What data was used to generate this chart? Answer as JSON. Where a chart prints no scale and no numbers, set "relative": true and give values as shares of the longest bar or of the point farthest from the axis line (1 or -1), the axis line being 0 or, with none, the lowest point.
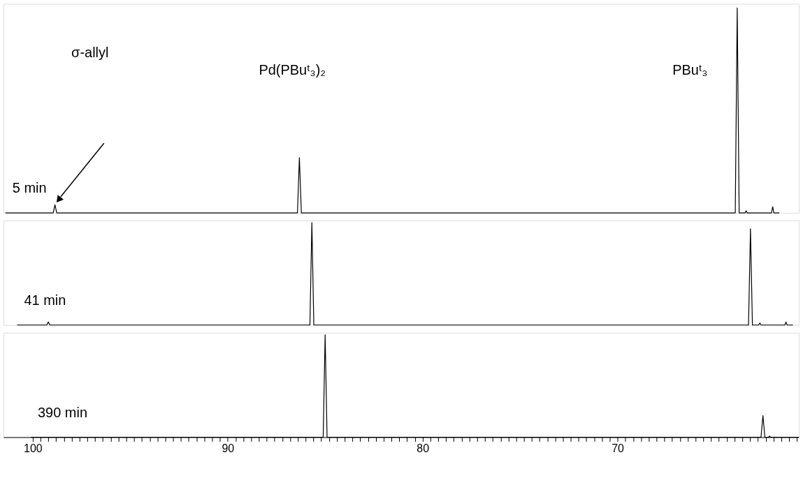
{
  "chart_data": [
    {
      "type": "line",
      "relative": true,
      "xlim": [
        101.5,
        60.7
      ],
      "tick_labels": false,
      "marker": "none",
      "line_style": "solid",
      "series": [
        {
          "name": "5 min",
          "color": "#000000",
          "x": [
            101.4,
            98.95,
            98.86,
            98.77,
            86.42,
            86.32,
            86.22,
            63.96,
            63.86,
            63.76,
            63.45,
            63.4,
            63.35,
            62.1,
            62.04,
            61.98,
            61.7
          ],
          "values": [
            0,
            0,
            0.04,
            0,
            0,
            0.27,
            0,
            0,
            1,
            0,
            0,
            0.01,
            0,
            0,
            0.03,
            0,
            0
          ]
        }
      ],
      "annotations": [
        "σ-allyl",
        "Pd(PBuᵗ₃)₂",
        "PBuᵗ₃"
      ]
    },
    {
      "type": "line",
      "relative": true,
      "xlim": [
        101.5,
        60.7
      ],
      "tick_labels": false,
      "marker": "none",
      "line_style": "solid",
      "series": [
        {
          "name": "41 min",
          "color": "#000000",
          "x": [
            100.8,
            99.28,
            99.2,
            99.12,
            85.78,
            85.68,
            85.58,
            63.28,
            63.18,
            63.08,
            62.76,
            62.7,
            62.64,
            61.42,
            61.36,
            61.3,
            61.0
          ],
          "values": [
            0,
            0,
            0.03,
            0,
            0,
            1,
            0,
            0,
            0.94,
            0,
            0,
            0.02,
            0,
            0,
            0.03,
            0,
            0
          ]
        }
      ]
    },
    {
      "type": "line",
      "relative": true,
      "xlim": [
        101.5,
        60.7
      ],
      "tick_labels": "x",
      "marker": "none",
      "line_style": "solid",
      "xticks": [
        100,
        {
          "value": 99.6,
          "label": null
        },
        {
          "value": 99.2,
          "label": null
        },
        {
          "value": 98.8,
          "label": null
        },
        {
          "value": 98.4,
          "label": null
        },
        {
          "value": 98,
          "label": null
        },
        {
          "value": 97.6,
          "label": null
        },
        {
          "value": 97.2,
          "label": null
        },
        {
          "value": 96.8,
          "label": null
        },
        {
          "value": 96.4,
          "label": null
        },
        {
          "value": 96,
          "label": null
        },
        {
          "value": 95.6,
          "label": null
        },
        {
          "value": 95.2,
          "label": null
        },
        {
          "value": 94.8,
          "label": null
        },
        {
          "value": 94.4,
          "label": null
        },
        {
          "value": 94,
          "label": null
        },
        {
          "value": 93.6,
          "label": null
        },
        {
          "value": 93.2,
          "label": null
        },
        {
          "value": 92.8,
          "label": null
        },
        {
          "value": 92.4,
          "label": null
        },
        {
          "value": 92,
          "label": null
        },
        {
          "value": 91.6,
          "label": null
        },
        {
          "value": 91.2,
          "label": null
        },
        {
          "value": 90.8,
          "label": null
        },
        {
          "value": 90.4,
          "label": null
        },
        90,
        {
          "value": 89.6,
          "label": null
        },
        {
          "value": 89.2,
          "label": null
        },
        {
          "value": 88.8,
          "label": null
        },
        {
          "value": 88.4,
          "label": null
        },
        {
          "value": 88,
          "label": null
        },
        {
          "value": 87.6,
          "label": null
        },
        {
          "value": 87.2,
          "label": null
        },
        {
          "value": 86.8,
          "label": null
        },
        {
          "value": 86.4,
          "label": null
        },
        {
          "value": 86,
          "label": null
        },
        {
          "value": 85.6,
          "label": null
        },
        {
          "value": 85.2,
          "label": null
        },
        {
          "value": 84.8,
          "label": null
        },
        {
          "value": 84.4,
          "label": null
        },
        {
          "value": 84,
          "label": null
        },
        {
          "value": 83.6,
          "label": null
        },
        {
          "value": 83.2,
          "label": null
        },
        {
          "value": 82.8,
          "label": null
        },
        {
          "value": 82.4,
          "label": null
        },
        {
          "value": 82,
          "label": null
        },
        {
          "value": 81.6,
          "label": null
        },
        {
          "value": 81.2,
          "label": null
        },
        {
          "value": 80.8,
          "label": null
        },
        {
          "value": 80.4,
          "label": null
        },
        80,
        {
          "value": 79.6,
          "label": null
        },
        {
          "value": 79.2,
          "label": null
        },
        {
          "value": 78.8,
          "label": null
        },
        {
          "value": 78.4,
          "label": null
        },
        {
          "value": 78,
          "label": null
        },
        {
          "value": 77.6,
          "label": null
        },
        {
          "value": 77.2,
          "label": null
        },
        {
          "value": 76.8,
          "label": null
        },
        {
          "value": 76.4,
          "label": null
        },
        {
          "value": 76,
          "label": null
        },
        {
          "value": 75.6,
          "label": null
        },
        {
          "value": 75.2,
          "label": null
        },
        {
          "value": 74.8,
          "label": null
        },
        {
          "value": 74.4,
          "label": null
        },
        {
          "value": 74,
          "label": null
        },
        {
          "value": 73.6,
          "label": null
        },
        {
          "value": 73.2,
          "label": null
        },
        {
          "value": 72.8,
          "label": null
        },
        {
          "value": 72.4,
          "label": null
        },
        {
          "value": 72,
          "label": null
        },
        {
          "value": 71.6,
          "label": null
        },
        {
          "value": 71.2,
          "label": null
        },
        {
          "value": 70.8,
          "label": null
        },
        {
          "value": 70.4,
          "label": null
        },
        70,
        {
          "value": 69.6,
          "label": null
        },
        {
          "value": 69.2,
          "label": null
        },
        {
          "value": 68.8,
          "label": null
        },
        {
          "value": 68.4,
          "label": null
        },
        {
          "value": 68,
          "label": null
        },
        {
          "value": 67.6,
          "label": null
        },
        {
          "value": 67.2,
          "label": null
        },
        {
          "value": 66.8,
          "label": null
        },
        {
          "value": 66.4,
          "label": null
        },
        {
          "value": 66,
          "label": null
        },
        {
          "value": 65.6,
          "label": null
        },
        {
          "value": 65.2,
          "label": null
        },
        {
          "value": 64.8,
          "label": null
        },
        {
          "value": 64.4,
          "label": null
        },
        {
          "value": 64,
          "label": null
        },
        {
          "value": 63.6,
          "label": null
        },
        {
          "value": 63.2,
          "label": null
        },
        {
          "value": 62.8,
          "label": null
        },
        {
          "value": 62.4,
          "label": null
        },
        {
          "value": 62,
          "label": null
        },
        {
          "value": 61.6,
          "label": null
        },
        {
          "value": 61.2,
          "label": null
        },
        {
          "value": 60.8,
          "label": null
        }
      ],
      "series": [
        {
          "name": "390 min",
          "color": "#000000",
          "x": [
            100.1,
            85.1,
            85.0,
            84.9,
            62.64,
            62.54,
            62.44,
            62.26,
            62.2,
            62.14,
            60.7
          ],
          "values": [
            0,
            0,
            1,
            0,
            0,
            0.21,
            0,
            0,
            0.01,
            0,
            0
          ]
        }
      ]
    }
  ]
}
